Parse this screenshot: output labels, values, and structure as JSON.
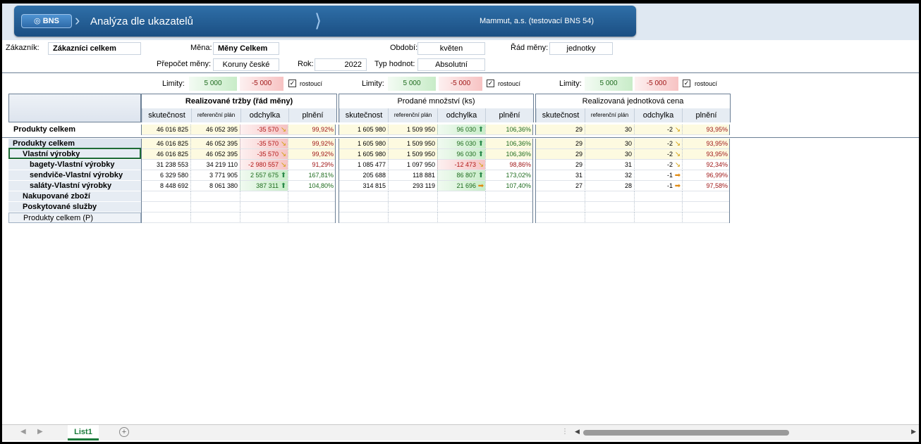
{
  "banner": {
    "logo": "BNS",
    "logo_icon": "globe-icon",
    "title": "Analýza dle ukazatelů",
    "company": "Mammut, a.s. (testovací BNS 54)"
  },
  "filters": {
    "zakaznik_label": "Zákazník:",
    "zakaznik_value": "Zákazníci celkem",
    "mena_label": "Měna:",
    "mena_value": "Měny Celkem",
    "obdobi_label": "Období:",
    "obdobi_value": "květen",
    "rad_label": "Řád měny:",
    "rad_value": "jednotky",
    "prepocet_label": "Přepočet měny:",
    "prepocet_value": "Koruny české",
    "rok_label": "Rok:",
    "rok_value": "2022",
    "typ_label": "Typ hodnot:",
    "typ_value": "Absolutní"
  },
  "limits": {
    "label": "Limity:",
    "green": "5 000",
    "red": "-5 000",
    "check_label": "rostoucí",
    "check_mark": "✓"
  },
  "groups": [
    {
      "title": "Realizované tržby (řád měny)",
      "bold": true
    },
    {
      "title": "Prodané množství (ks)",
      "bold": false
    },
    {
      "title": "Realizovaná jednotková cena",
      "bold": false
    }
  ],
  "subheaders": [
    "skutečnost",
    "referenční plán",
    "odchylka",
    "plnění"
  ],
  "total_row": {
    "label": "Produkty celkem",
    "g1": [
      "46 016 825",
      "46 052 395",
      "-35 570",
      "99,92%"
    ],
    "g2": [
      "1 605 980",
      "1 509 950",
      "96 030",
      "106,36%"
    ],
    "g3": [
      "29",
      "30",
      "-2",
      "93,95%"
    ]
  },
  "rows": [
    {
      "label": "Produkty celkem",
      "g1": [
        "46 016 825",
        "46 052 395",
        "-35 570",
        "99,92%"
      ],
      "g2": [
        "1 605 980",
        "1 509 950",
        "96 030",
        "106,36%"
      ],
      "g3": [
        "29",
        "30",
        "-2",
        "93,95%"
      ]
    },
    {
      "label": "Vlastní výrobky",
      "g1": [
        "46 016 825",
        "46 052 395",
        "-35 570",
        "99,92%"
      ],
      "g2": [
        "1 605 980",
        "1 509 950",
        "96 030",
        "106,36%"
      ],
      "g3": [
        "29",
        "30",
        "-2",
        "93,95%"
      ]
    },
    {
      "label": "bagety-Vlastní výrobky",
      "g1": [
        "31 238 553",
        "34 219 110",
        "-2 980 557",
        "91,29%"
      ],
      "g2": [
        "1 085 477",
        "1 097 950",
        "-12 473",
        "98,86%"
      ],
      "g3": [
        "29",
        "31",
        "-2",
        "92,34%"
      ]
    },
    {
      "label": "sendviče-Vlastní výrobky",
      "g1": [
        "6 329 580",
        "3 771 905",
        "2 557 675",
        "167,81%"
      ],
      "g2": [
        "205 688",
        "118 881",
        "86 807",
        "173,02%"
      ],
      "g3": [
        "31",
        "32",
        "-1",
        "96,99%"
      ]
    },
    {
      "label": "saláty-Vlastní výrobky",
      "g1": [
        "8 448 692",
        "8 061 380",
        "387 311",
        "104,80%"
      ],
      "g2": [
        "314 815",
        "293 119",
        "21 696",
        "107,40%"
      ],
      "g3": [
        "27",
        "28",
        "-1",
        "97,58%"
      ]
    },
    {
      "label": "Nakupované zboží"
    },
    {
      "label": "Poskytované služby"
    },
    {
      "label": "Produkty celkem (P)"
    }
  ],
  "sheet": {
    "tab": "List1",
    "add": "+",
    "nav_prev": "◀",
    "nav_next": "▶",
    "dots": "⋮",
    "scroll_left": "◀",
    "scroll_right": "▶"
  }
}
